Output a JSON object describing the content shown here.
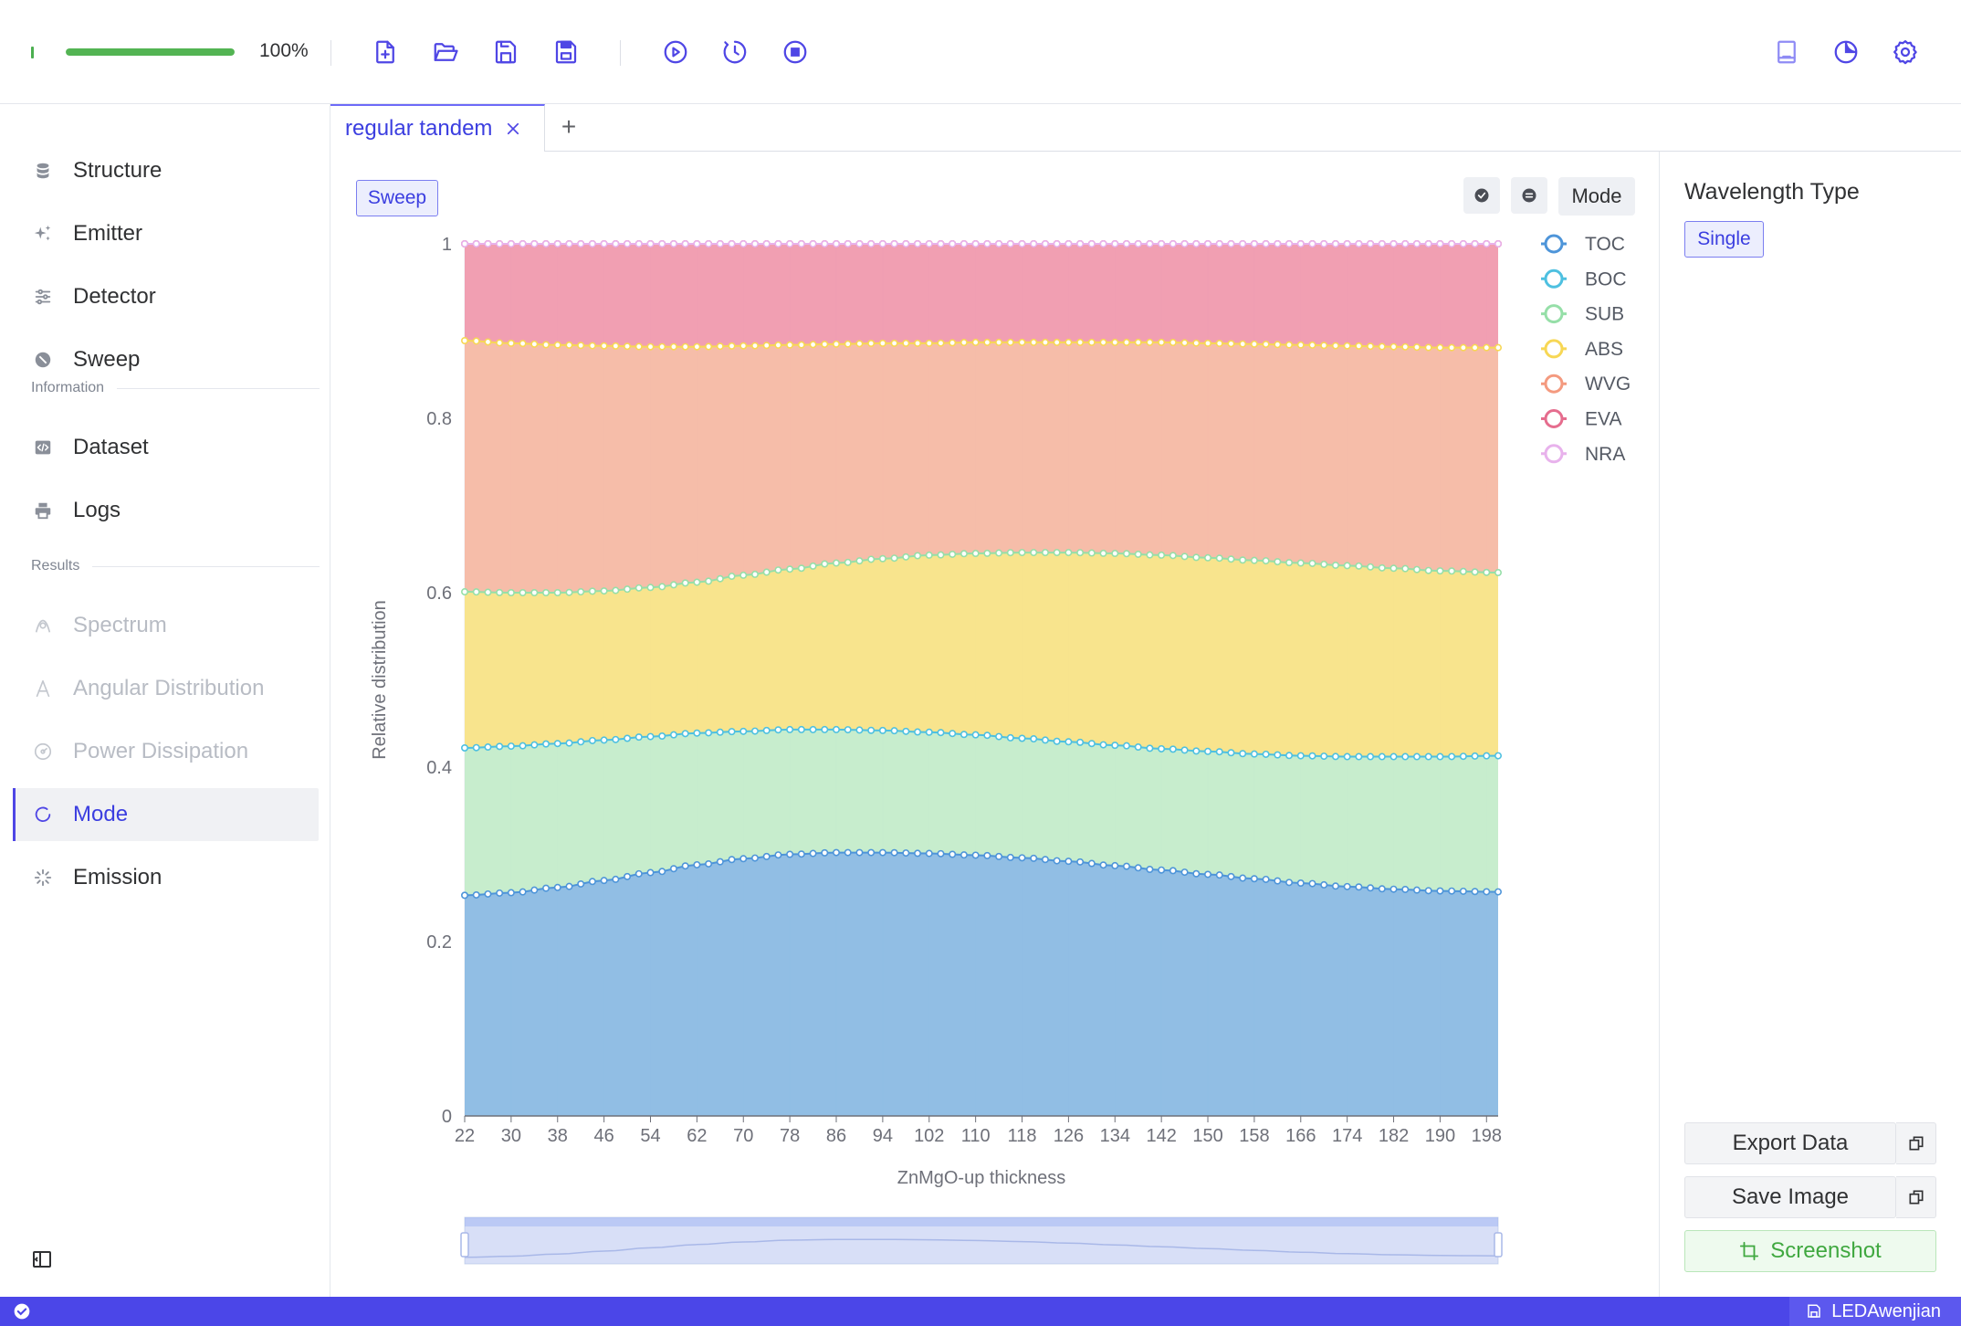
{
  "toolbar": {
    "progress_percent": 100,
    "progress_label": "100%",
    "file_buttons": [
      "new-file-icon",
      "open-folder-icon",
      "save-icon",
      "save-as-icon"
    ],
    "run_buttons": [
      "run-icon",
      "timer-icon",
      "stop-icon"
    ],
    "right_buttons": [
      "document-icon",
      "theme-icon",
      "gear-icon"
    ],
    "accent_color": "#4f46e5",
    "progress_color": "#53b453"
  },
  "sidebar": {
    "items_main": [
      {
        "label": "Structure",
        "icon": "database-icon"
      },
      {
        "label": "Emitter",
        "icon": "sparkles-icon"
      },
      {
        "label": "Detector",
        "icon": "sliders-icon"
      },
      {
        "label": "Sweep",
        "icon": "sweep-icon"
      }
    ],
    "group_information": "Information",
    "items_information": [
      {
        "label": "Dataset",
        "icon": "code-icon"
      },
      {
        "label": "Logs",
        "icon": "printer-icon"
      }
    ],
    "group_results": "Results",
    "items_results": [
      {
        "label": "Spectrum",
        "icon": "spectrum-icon",
        "disabled": true
      },
      {
        "label": "Angular Distribution",
        "icon": "angle-icon",
        "disabled": true
      },
      {
        "label": "Power Dissipation",
        "icon": "dissipation-icon",
        "disabled": true
      },
      {
        "label": "Mode",
        "icon": "mode-icon",
        "active": true
      },
      {
        "label": "Emission",
        "icon": "loading-icon"
      }
    ]
  },
  "tabs": {
    "active_tab": "regular tandem",
    "add_label": "+"
  },
  "chart_controls": {
    "sweep_label": "Sweep",
    "mode_label": "Mode"
  },
  "right_panel": {
    "title": "Wavelength Type",
    "single_label": "Single",
    "export_label": "Export Data",
    "save_image_label": "Save Image",
    "screenshot_label": "Screenshot"
  },
  "statusbar": {
    "user": "LEDAwenjian",
    "bar_color": "#4b46e8"
  },
  "chart_data": {
    "type": "area",
    "stacked": true,
    "xlabel": "ZnMgO-up thickness",
    "ylabel": "Relative distribution",
    "ylim": [
      0,
      1
    ],
    "yticks": [
      0,
      0.2,
      0.4,
      0.6,
      0.8,
      1
    ],
    "xlim": [
      22,
      200
    ],
    "xstep": 2,
    "xtick_labels": [
      22,
      30,
      38,
      46,
      54,
      62,
      70,
      78,
      86,
      94,
      102,
      110,
      118,
      126,
      134,
      142,
      150,
      158,
      166,
      174,
      182,
      190,
      198
    ],
    "grid": "vertical",
    "legend_position": "top-right",
    "series": [
      {
        "name": "TOC",
        "color": "#4e95d9",
        "fill": "#8bbae3",
        "cumulative_anchors": [
          [
            22,
            0.253
          ],
          [
            30,
            0.256
          ],
          [
            38,
            0.262
          ],
          [
            46,
            0.27
          ],
          [
            54,
            0.279
          ],
          [
            62,
            0.288
          ],
          [
            70,
            0.295
          ],
          [
            78,
            0.3
          ],
          [
            86,
            0.302
          ],
          [
            94,
            0.302
          ],
          [
            102,
            0.301
          ],
          [
            110,
            0.299
          ],
          [
            118,
            0.296
          ],
          [
            126,
            0.292
          ],
          [
            134,
            0.287
          ],
          [
            142,
            0.282
          ],
          [
            150,
            0.277
          ],
          [
            158,
            0.272
          ],
          [
            166,
            0.267
          ],
          [
            174,
            0.263
          ],
          [
            182,
            0.26
          ],
          [
            190,
            0.258
          ],
          [
            200,
            0.257
          ]
        ]
      },
      {
        "name": "BOC",
        "color": "#4ec0e0",
        "fill": "#c4ecca",
        "cumulative_anchors": [
          [
            22,
            0.422
          ],
          [
            30,
            0.424
          ],
          [
            38,
            0.427
          ],
          [
            46,
            0.431
          ],
          [
            54,
            0.435
          ],
          [
            62,
            0.439
          ],
          [
            70,
            0.441
          ],
          [
            78,
            0.443
          ],
          [
            86,
            0.443
          ],
          [
            94,
            0.442
          ],
          [
            102,
            0.44
          ],
          [
            110,
            0.437
          ],
          [
            118,
            0.433
          ],
          [
            126,
            0.429
          ],
          [
            134,
            0.425
          ],
          [
            142,
            0.421
          ],
          [
            150,
            0.418
          ],
          [
            158,
            0.415
          ],
          [
            166,
            0.413
          ],
          [
            174,
            0.412
          ],
          [
            182,
            0.412
          ],
          [
            190,
            0.412
          ],
          [
            200,
            0.413
          ]
        ]
      },
      {
        "name": "SUB",
        "color": "#96dfa8",
        "fill": "#f8e387",
        "cumulative_anchors": [
          [
            22,
            0.601
          ],
          [
            30,
            0.6
          ],
          [
            38,
            0.6
          ],
          [
            46,
            0.602
          ],
          [
            54,
            0.606
          ],
          [
            62,
            0.612
          ],
          [
            70,
            0.62
          ],
          [
            78,
            0.627
          ],
          [
            86,
            0.634
          ],
          [
            94,
            0.639
          ],
          [
            102,
            0.643
          ],
          [
            110,
            0.645
          ],
          [
            118,
            0.646
          ],
          [
            126,
            0.646
          ],
          [
            134,
            0.645
          ],
          [
            142,
            0.643
          ],
          [
            150,
            0.64
          ],
          [
            158,
            0.637
          ],
          [
            166,
            0.634
          ],
          [
            174,
            0.631
          ],
          [
            182,
            0.628
          ],
          [
            190,
            0.625
          ],
          [
            200,
            0.623
          ]
        ]
      },
      {
        "name": "ABS",
        "color": "#f7d755",
        "fill": "#f5b9a4",
        "cumulative_anchors": [
          [
            22,
            0.889
          ],
          [
            30,
            0.886
          ],
          [
            38,
            0.884
          ],
          [
            46,
            0.883
          ],
          [
            54,
            0.882
          ],
          [
            62,
            0.882
          ],
          [
            70,
            0.883
          ],
          [
            78,
            0.884
          ],
          [
            86,
            0.885
          ],
          [
            94,
            0.886
          ],
          [
            102,
            0.886
          ],
          [
            110,
            0.887
          ],
          [
            118,
            0.887
          ],
          [
            126,
            0.887
          ],
          [
            134,
            0.887
          ],
          [
            142,
            0.887
          ],
          [
            150,
            0.886
          ],
          [
            158,
            0.885
          ],
          [
            166,
            0.884
          ],
          [
            174,
            0.883
          ],
          [
            182,
            0.882
          ],
          [
            190,
            0.881
          ],
          [
            200,
            0.881
          ]
        ]
      },
      {
        "name": "WVG",
        "color": "#f49a7f",
        "fill": "#f09aae",
        "cumulative_anchors": [
          [
            22,
            1.0
          ],
          [
            200,
            1.0
          ]
        ]
      },
      {
        "name": "EVA",
        "color": "#e56d8e",
        "fill": "#f09aae",
        "cumulative_anchors": [
          [
            22,
            1.0
          ],
          [
            200,
            1.0
          ]
        ]
      },
      {
        "name": "NRA",
        "color": "#e8b2ec",
        "fill": "none",
        "cumulative_anchors": [
          [
            22,
            1.0
          ],
          [
            200,
            1.0
          ]
        ]
      }
    ],
    "zoom_window": [
      0,
      100
    ]
  }
}
